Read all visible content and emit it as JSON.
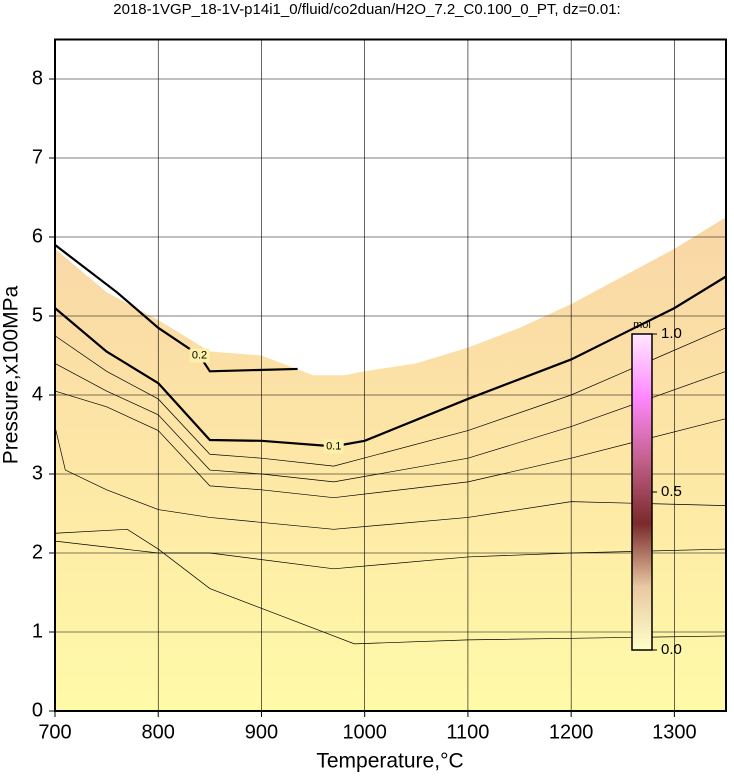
{
  "chart_data": {
    "type": "contour",
    "title": "2018-1VGP_18-1V-p14i1_0/fluid/co2duan/H2O_7.2_C0.100_0_PT, dz=0.01:",
    "x_label": "Temperature,°C",
    "y_label": "Pressure,x100MPa",
    "xlim": [
      700,
      1350
    ],
    "ylim": [
      0,
      8.5
    ],
    "xticks": [
      700,
      800,
      900,
      1000,
      1100,
      1200,
      1300
    ],
    "yticks": [
      0,
      1,
      2,
      3,
      4,
      5,
      6,
      7,
      8
    ],
    "grid": true,
    "fill_colors": [
      "#fffaa8",
      "#fde7a6",
      "#f9d6a6"
    ],
    "region": {
      "x": [
        700,
        750,
        800,
        850,
        900,
        950,
        980,
        1000,
        1050,
        1100,
        1150,
        1200,
        1250,
        1300,
        1350
      ],
      "y": [
        5.85,
        5.3,
        4.95,
        4.55,
        4.5,
        4.25,
        4.25,
        4.3,
        4.4,
        4.6,
        4.85,
        5.15,
        5.5,
        5.85,
        6.25
      ]
    },
    "contours": [
      {
        "label": "0.2",
        "x": [
          700,
          760,
          800,
          840,
          850,
          935
        ],
        "y": [
          5.9,
          5.3,
          4.85,
          4.5,
          4.3,
          4.33
        ]
      },
      {
        "label": "0.1",
        "x": [
          700,
          750,
          800,
          850,
          900,
          970,
          1000,
          1100,
          1200,
          1300,
          1350
        ],
        "y": [
          5.1,
          4.55,
          4.15,
          3.43,
          3.42,
          3.35,
          3.42,
          3.95,
          4.45,
          5.1,
          5.5
        ]
      },
      {
        "x": [
          700,
          750,
          800,
          850,
          900,
          970,
          1100,
          1200,
          1350
        ],
        "y": [
          4.75,
          4.3,
          3.95,
          3.25,
          3.2,
          3.1,
          3.55,
          4.0,
          4.85
        ]
      },
      {
        "x": [
          700,
          750,
          800,
          850,
          900,
          970,
          1100,
          1200,
          1350
        ],
        "y": [
          4.4,
          4.05,
          3.75,
          3.05,
          3.0,
          2.9,
          3.2,
          3.6,
          4.3
        ]
      },
      {
        "x": [
          700,
          750,
          800,
          850,
          900,
          970,
          1100,
          1200,
          1350
        ],
        "y": [
          4.05,
          3.85,
          3.55,
          2.85,
          2.8,
          2.7,
          2.9,
          3.2,
          3.7
        ]
      },
      {
        "x": [
          700,
          710,
          750,
          800,
          850,
          970,
          1100,
          1200,
          1350
        ],
        "y": [
          3.6,
          3.05,
          2.8,
          2.55,
          2.45,
          2.3,
          2.45,
          2.65,
          2.6
        ]
      },
      {
        "x": [
          700,
          770,
          800,
          850,
          900,
          990,
          1100,
          1200,
          1350
        ],
        "y": [
          2.25,
          2.3,
          2.05,
          1.55,
          1.3,
          0.85,
          0.9,
          0.92,
          0.95
        ]
      },
      {
        "x": [
          700,
          800,
          850,
          970,
          1100,
          1200,
          1350
        ],
        "y": [
          2.15,
          2.0,
          2.0,
          1.8,
          1.95,
          2.0,
          2.05
        ]
      }
    ],
    "colorbar": {
      "label": "mol",
      "lim": [
        0,
        1
      ],
      "ticks": [
        {
          "value": 0,
          "label": "0.0"
        },
        {
          "value": 0.5,
          "label": "0.5"
        },
        {
          "value": 1,
          "label": "1.0"
        }
      ],
      "colors": [
        "#ffffc8",
        "#e9c8a2",
        "#7a2a2a",
        "#c2608a",
        "#ff88ff",
        "#ffe8ff"
      ]
    }
  }
}
